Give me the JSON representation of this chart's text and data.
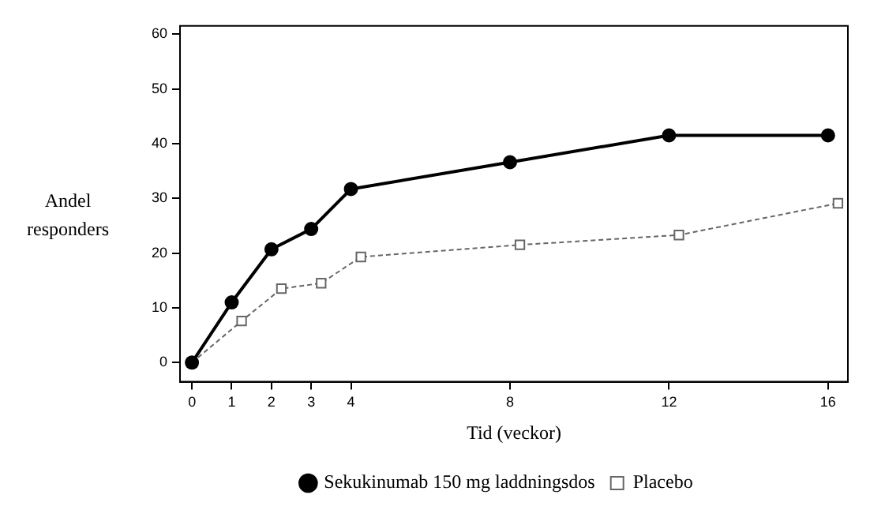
{
  "chart_data": {
    "type": "line",
    "xlabel": "Tid (veckor)",
    "ylabel": "Andel responders",
    "xlim": [
      -0.3,
      16.5
    ],
    "xticks": [
      0,
      1,
      2,
      3,
      4,
      8,
      12,
      16
    ],
    "ylim": [
      -3.5,
      61.5
    ],
    "yticks": [
      0,
      10,
      20,
      30,
      40,
      50,
      60
    ],
    "grid": false,
    "legend": "bottom",
    "series": [
      {
        "name": "Sekukinumab 150 mg laddningsdos",
        "color": "#000000",
        "marker": "circle",
        "line_style": "solid",
        "x": [
          0,
          1,
          2,
          3,
          4,
          8,
          12,
          16
        ],
        "values": [
          0,
          11,
          20.7,
          24.4,
          31.7,
          36.6,
          41.5,
          41.5
        ]
      },
      {
        "name": "Placebo",
        "color": "#666666",
        "marker": "square",
        "line_style": "dashed",
        "x": [
          0,
          1.25,
          2.25,
          3.25,
          4.25,
          8.25,
          12.25,
          16.25
        ],
        "values": [
          0,
          7.6,
          13.5,
          14.5,
          19.3,
          21.5,
          23.3,
          29.1
        ]
      }
    ]
  }
}
